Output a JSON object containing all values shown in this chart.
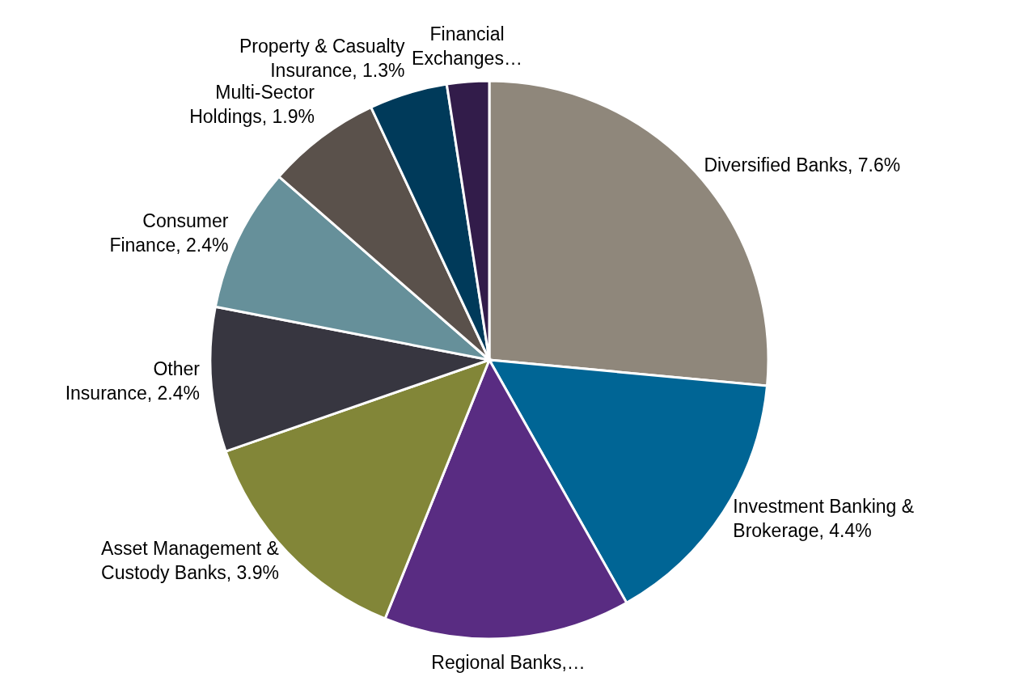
{
  "chart_data": {
    "type": "pie",
    "categories": [
      "Diversified Banks",
      "Investment Banking & Brokerage",
      "Regional Banks,…",
      "Asset Management & Custody Banks",
      "Other Insurance",
      "Consumer Finance",
      "Multi-Sector Holdings",
      "Property & Casualty Insurance",
      "Financial Exchanges…"
    ],
    "values": [
      7.6,
      4.4,
      4.1,
      3.9,
      2.4,
      2.4,
      1.9,
      1.3,
      0.7
    ],
    "value_labels": [
      "7.6%",
      "4.4%",
      null,
      "3.9%",
      "2.4%",
      "2.4%",
      "1.9%",
      "1.3%",
      null
    ],
    "colors": [
      "#8f877b",
      "#006595",
      "#592c82",
      "#828638",
      "#373640",
      "#66909a",
      "#5a514b",
      "#003a5a",
      "#321c4a"
    ],
    "legend": false
  }
}
